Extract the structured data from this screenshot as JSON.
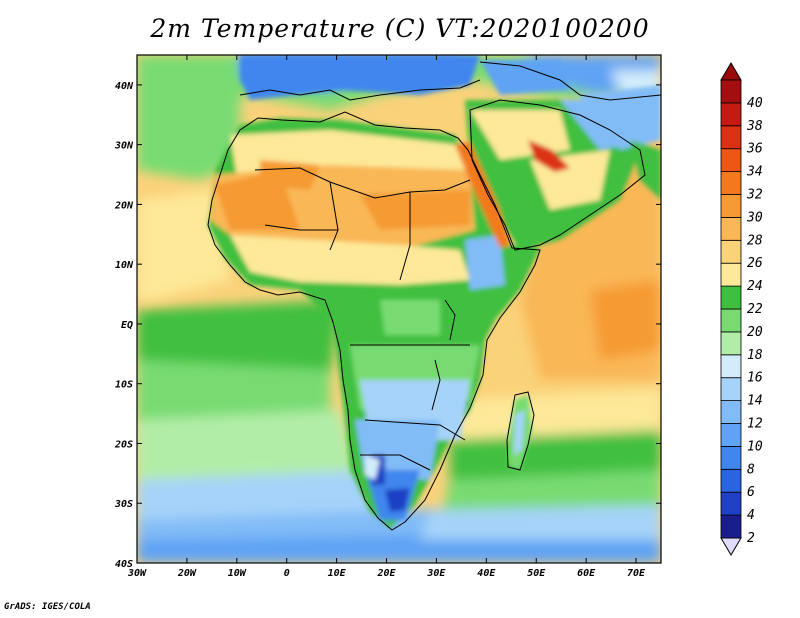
{
  "title": "2m Temperature (C) VT:2020100200",
  "footer": "GrADS: IGES/COLA",
  "map": {
    "lon_range": [
      -30,
      75
    ],
    "lat_range": [
      -40,
      45
    ],
    "lon_ticks": [
      {
        "value": -30,
        "label": "30W"
      },
      {
        "value": -20,
        "label": "20W"
      },
      {
        "value": -10,
        "label": "10W"
      },
      {
        "value": 0,
        "label": "0"
      },
      {
        "value": 10,
        "label": "10E"
      },
      {
        "value": 20,
        "label": "20E"
      },
      {
        "value": 30,
        "label": "30E"
      },
      {
        "value": 40,
        "label": "40E"
      },
      {
        "value": 50,
        "label": "50E"
      },
      {
        "value": 60,
        "label": "60E"
      },
      {
        "value": 70,
        "label": "70E"
      }
    ],
    "lat_ticks": [
      {
        "value": 40,
        "label": "40N"
      },
      {
        "value": 30,
        "label": "30N"
      },
      {
        "value": 20,
        "label": "20N"
      },
      {
        "value": 10,
        "label": "10N"
      },
      {
        "value": 0,
        "label": "EQ"
      },
      {
        "value": -10,
        "label": "10S"
      },
      {
        "value": -20,
        "label": "20S"
      },
      {
        "value": -30,
        "label": "30S"
      },
      {
        "value": -40,
        "label": "40S"
      }
    ]
  },
  "colorbar": {
    "levels": [
      "2",
      "4",
      "6",
      "8",
      "10",
      "12",
      "14",
      "16",
      "18",
      "20",
      "22",
      "24",
      "26",
      "28",
      "30",
      "32",
      "34",
      "36",
      "38",
      "40"
    ],
    "colors": [
      "#1a1e8c",
      "#1f3fc4",
      "#2a64e0",
      "#3f86ee",
      "#5fa3f4",
      "#82bcf7",
      "#a6d3f9",
      "#d2ecfa",
      "#b2eda8",
      "#78db72",
      "#3fbf3f",
      "#fde999",
      "#fad27a",
      "#f9b757",
      "#f69a33",
      "#f3791f",
      "#ed5614",
      "#dc3013",
      "#c51a12",
      "#a30f0e"
    ],
    "under_color": "#e1dcfb",
    "over_color": "#9a0c0c"
  }
}
